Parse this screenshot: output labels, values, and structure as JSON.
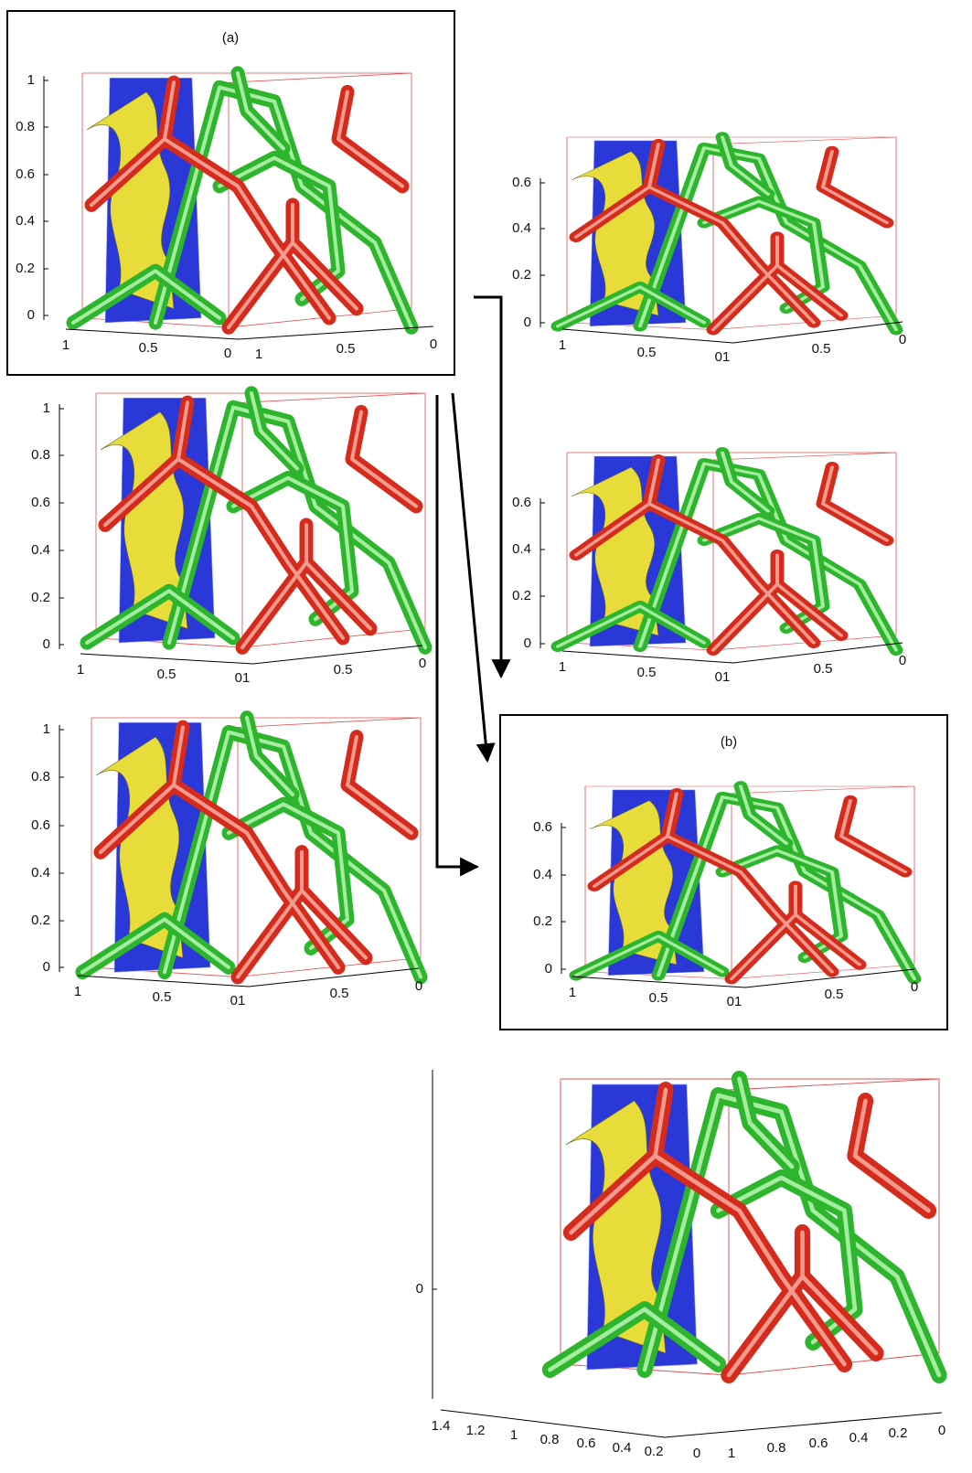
{
  "panels": [
    {
      "label": "(a)",
      "z_ticks": [
        "1",
        "0.8",
        "0.6",
        "0.4",
        "0.2",
        "0"
      ],
      "x_ticks": [
        "1",
        "0.5",
        "0",
        "1",
        "0.5",
        "0"
      ]
    },
    {
      "z_ticks": [
        "0.6",
        "0.4",
        "0.2",
        "0"
      ],
      "x_ticks": [
        "1",
        "0.5",
        "01",
        "0.5",
        "0"
      ]
    },
    {
      "z_ticks": [
        "1",
        "0.8",
        "0.6",
        "0.4",
        "0.2",
        "0"
      ],
      "x_ticks": [
        "1",
        "0.5",
        "01",
        "0.5",
        "0"
      ]
    },
    {
      "z_ticks": [
        "0.6",
        "0.4",
        "0.2",
        "0"
      ],
      "x_ticks": [
        "1",
        "0.5",
        "01",
        "0.5",
        "0"
      ]
    },
    {
      "z_ticks": [
        "1",
        "0.8",
        "0.6",
        "0.4",
        "0.2",
        "0"
      ],
      "x_ticks": [
        "1",
        "0.5",
        "01",
        "0.5",
        "0"
      ]
    },
    {
      "label": "(b)",
      "z_ticks": [
        "0.6",
        "0.4",
        "0.2",
        "0"
      ],
      "x_ticks": [
        "1",
        "0.5",
        "01",
        "0.5",
        "0"
      ]
    },
    {
      "z_ticks": [
        "0"
      ],
      "x_ticks": [
        "1.4",
        "1.2",
        "1",
        "0.8",
        "0.6",
        "0.4",
        "0.2",
        "0",
        "1",
        "0.8",
        "0.6",
        "0.4",
        "0.2",
        "0"
      ]
    }
  ]
}
